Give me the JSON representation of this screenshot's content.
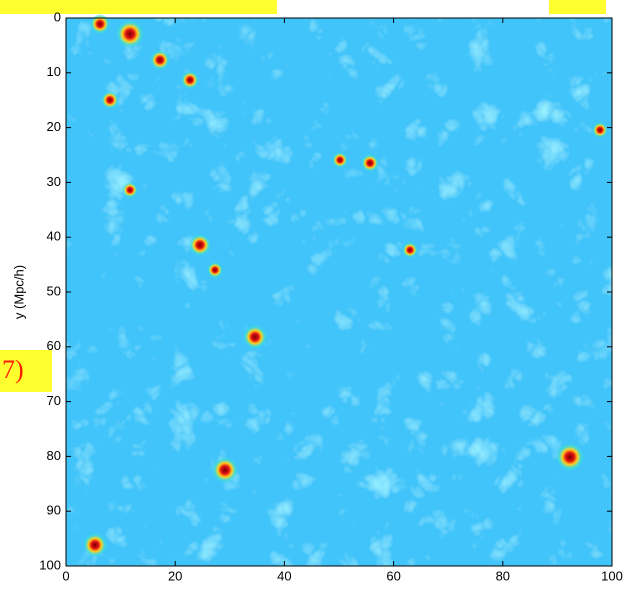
{
  "chart_data": {
    "type": "image",
    "y_label": "y (Mpc/h)",
    "annotation": "7)",
    "xlim": [
      0,
      100
    ],
    "ylim": [
      0,
      100
    ],
    "y_inverted": true,
    "xticks": [
      0,
      20,
      40,
      60,
      80,
      100
    ],
    "yticks": [
      0,
      10,
      20,
      30,
      40,
      50,
      60,
      70,
      80,
      90,
      100
    ]
  }
}
